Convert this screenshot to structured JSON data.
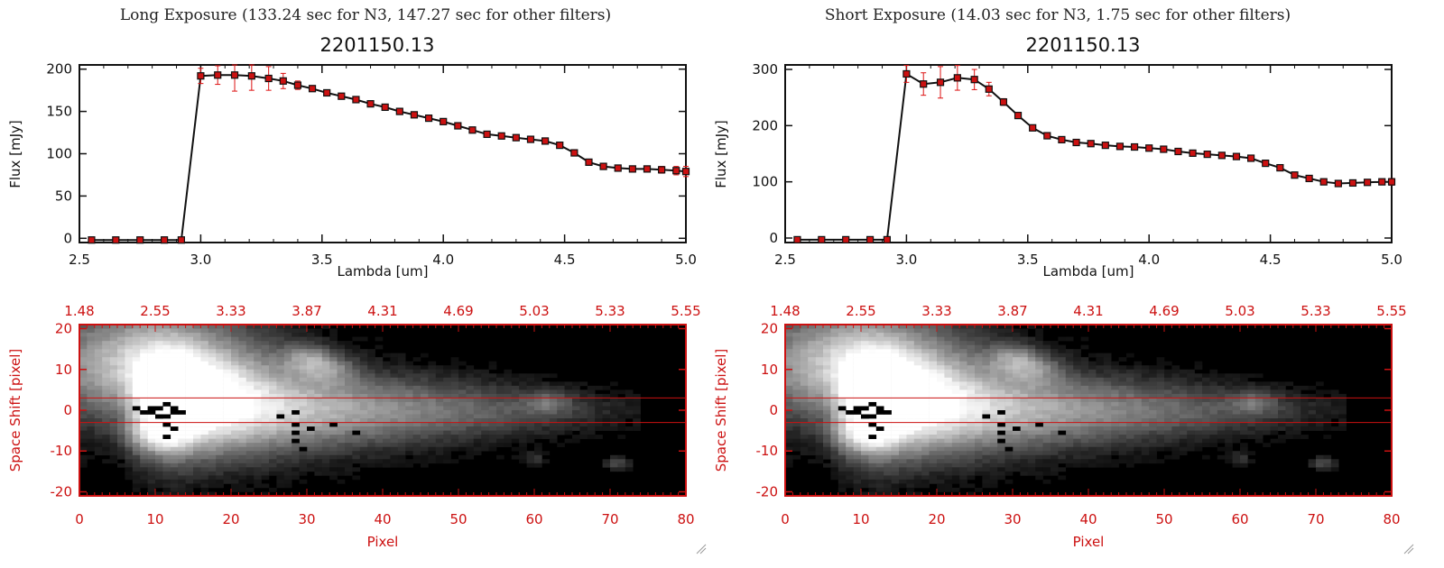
{
  "panels": [
    {
      "header": "Long Exposure (133.24 sec for N3, 147.27 sec for other filters)",
      "chart_data": {
        "type": "line",
        "title": "2201150.13",
        "xlabel": "Lambda [um]",
        "ylabel": "Flux [mJy]",
        "xlim": [
          2.5,
          5.0
        ],
        "ylim": [
          -5,
          205
        ],
        "xticks": [
          "2.5",
          "3.0",
          "3.5",
          "4.0",
          "4.5",
          "5.0"
        ],
        "yticks": [
          "0",
          "50",
          "100",
          "150",
          "200"
        ],
        "x": [
          2.55,
          2.65,
          2.75,
          2.85,
          2.92,
          3.0,
          3.07,
          3.14,
          3.21,
          3.28,
          3.34,
          3.4,
          3.46,
          3.52,
          3.58,
          3.64,
          3.7,
          3.76,
          3.82,
          3.88,
          3.94,
          4.0,
          4.06,
          4.12,
          4.18,
          4.24,
          4.3,
          4.36,
          4.42,
          4.48,
          4.54,
          4.6,
          4.66,
          4.72,
          4.78,
          4.84,
          4.9,
          4.96,
          5.0
        ],
        "y": [
          -2,
          -2,
          -2,
          -2,
          -2,
          192,
          193,
          193,
          192,
          189,
          186,
          181,
          177,
          172,
          168,
          164,
          159,
          155,
          150,
          146,
          142,
          138,
          133,
          128,
          123,
          121,
          119,
          117,
          115,
          110,
          101,
          90,
          85,
          83,
          82,
          82,
          81,
          80,
          79
        ],
        "yerr": [
          0,
          0,
          0,
          0,
          0,
          9,
          11,
          19,
          17,
          14,
          9,
          5,
          3,
          2,
          2,
          2,
          2,
          2,
          2,
          2,
          2,
          2,
          2,
          2,
          2,
          2,
          2,
          2,
          2,
          2,
          2,
          2,
          2,
          2,
          2,
          3,
          4,
          5,
          6
        ]
      },
      "spectrum_image": {
        "type": "heatmap",
        "top_axis_ticks": [
          "1.48",
          "2.55",
          "3.33",
          "3.87",
          "4.31",
          "4.69",
          "5.03",
          "5.33",
          "5.55"
        ],
        "xlabel": "Pixel",
        "ylabel": "Space Shift [pixel]",
        "xlim": [
          0,
          80
        ],
        "ylim": [
          -21,
          21
        ],
        "xticks": [
          "0",
          "10",
          "20",
          "30",
          "40",
          "50",
          "60",
          "70",
          "80"
        ],
        "yticks": [
          "20",
          "10",
          "0",
          "-10",
          "-20"
        ],
        "aperture_lines": [
          3,
          -3
        ]
      }
    },
    {
      "header": "Short Exposure (14.03 sec for N3, 1.75 sec for other filters)",
      "chart_data": {
        "type": "line",
        "title": "2201150.13",
        "xlabel": "Lambda [um]",
        "ylabel": "Flux [mJy]",
        "xlim": [
          2.5,
          5.0
        ],
        "ylim": [
          -8,
          308
        ],
        "xticks": [
          "2.5",
          "3.0",
          "3.5",
          "4.0",
          "4.5",
          "5.0"
        ],
        "yticks": [
          "0",
          "100",
          "200",
          "300"
        ],
        "x": [
          2.55,
          2.65,
          2.75,
          2.85,
          2.92,
          3.0,
          3.07,
          3.14,
          3.21,
          3.28,
          3.34,
          3.4,
          3.46,
          3.52,
          3.58,
          3.64,
          3.7,
          3.76,
          3.82,
          3.88,
          3.94,
          4.0,
          4.06,
          4.12,
          4.18,
          4.24,
          4.3,
          4.36,
          4.42,
          4.48,
          4.54,
          4.6,
          4.66,
          4.72,
          4.78,
          4.84,
          4.9,
          4.96,
          5.0
        ],
        "y": [
          -3,
          -3,
          -3,
          -3,
          -3,
          292,
          274,
          277,
          285,
          282,
          265,
          242,
          218,
          196,
          182,
          175,
          170,
          168,
          165,
          163,
          162,
          160,
          158,
          154,
          151,
          149,
          147,
          145,
          142,
          133,
          125,
          112,
          106,
          100,
          97,
          98,
          99,
          100,
          100
        ],
        "yerr": [
          0,
          0,
          0,
          0,
          0,
          15,
          20,
          28,
          22,
          18,
          12,
          6,
          4,
          3,
          3,
          2,
          2,
          2,
          2,
          2,
          2,
          2,
          2,
          2,
          2,
          2,
          2,
          2,
          2,
          2,
          2,
          2,
          2,
          2,
          2,
          3,
          4,
          5,
          6
        ]
      },
      "spectrum_image": {
        "type": "heatmap",
        "top_axis_ticks": [
          "1.48",
          "2.55",
          "3.33",
          "3.87",
          "4.31",
          "4.69",
          "5.03",
          "5.33",
          "5.55"
        ],
        "xlabel": "Pixel",
        "ylabel": "Space Shift [pixel]",
        "xlim": [
          0,
          80
        ],
        "ylim": [
          -21,
          21
        ],
        "xticks": [
          "0",
          "10",
          "20",
          "30",
          "40",
          "50",
          "60",
          "70",
          "80"
        ],
        "yticks": [
          "20",
          "10",
          "0",
          "-10",
          "-20"
        ],
        "aperture_lines": [
          3,
          -3
        ]
      }
    }
  ],
  "colors": {
    "axis": "#111111",
    "data_marker": "#cc1111",
    "spectrum_axis": "#cc1111",
    "background": "#ffffff",
    "image_background": "#000000"
  }
}
